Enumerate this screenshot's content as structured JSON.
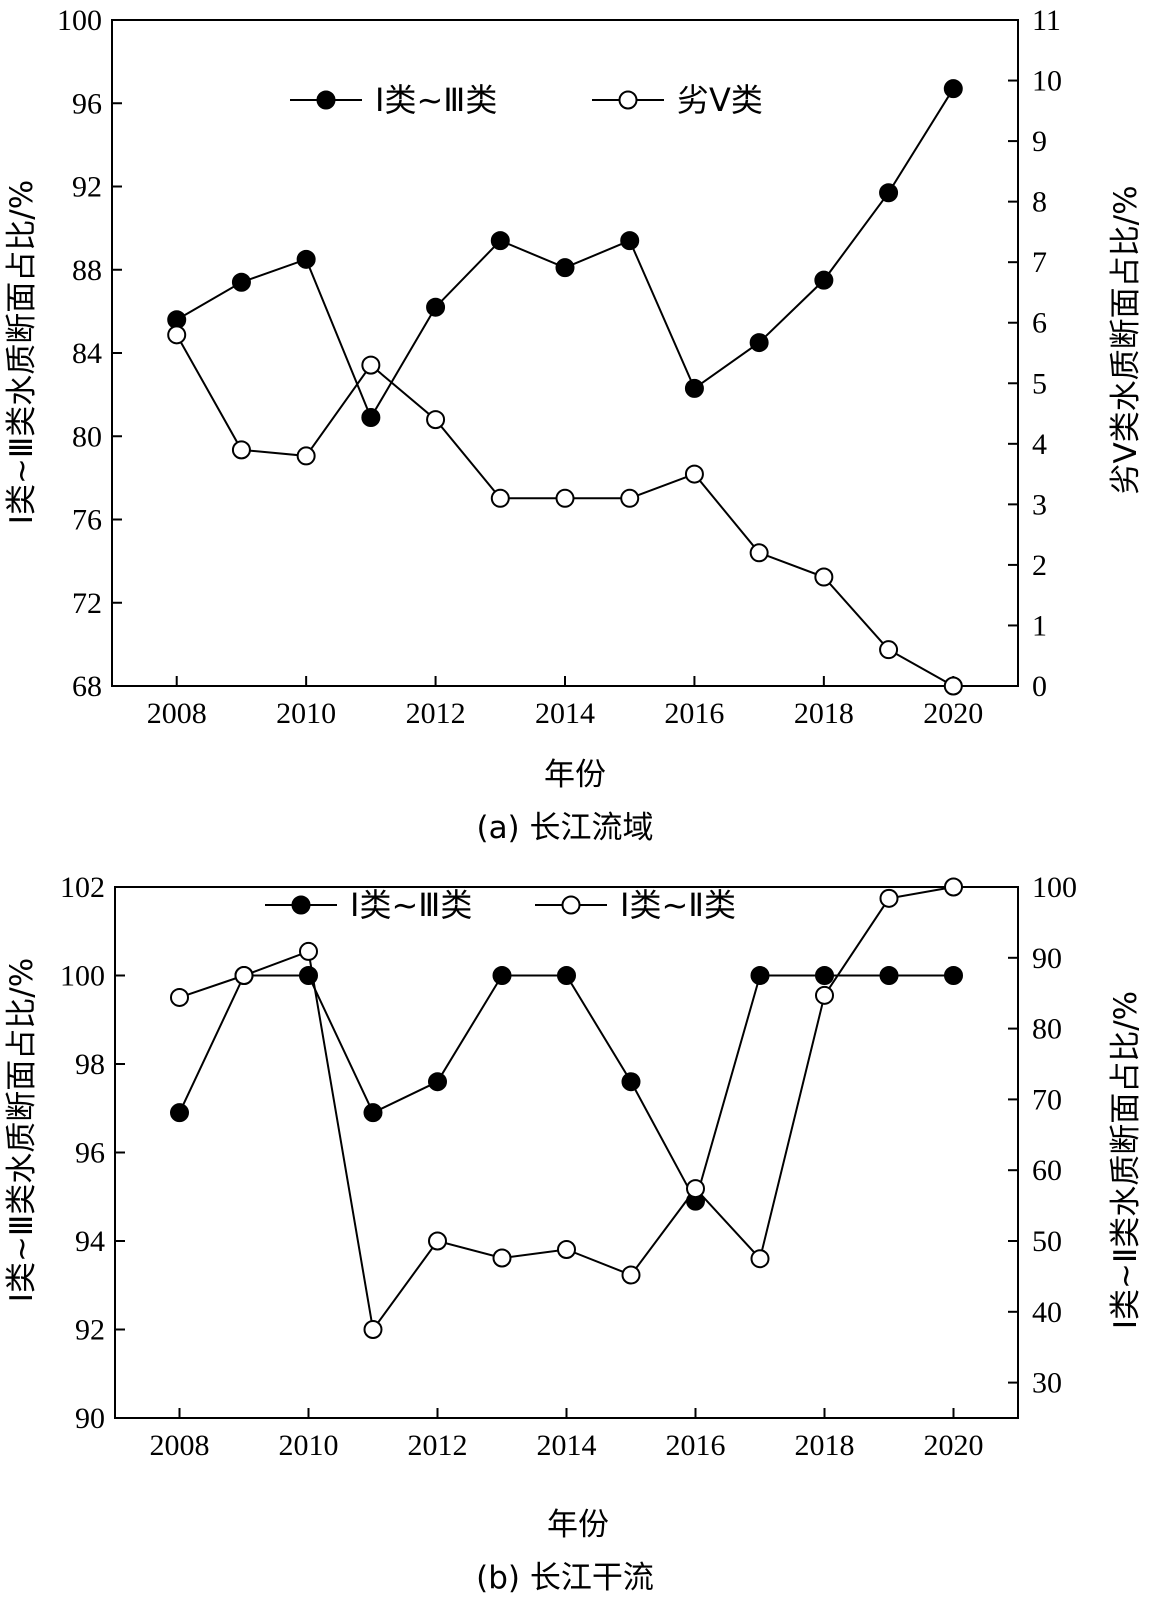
{
  "chart_data": [
    {
      "type": "line",
      "caption": "(a) 长江流域",
      "xlabel": "年份",
      "ylabel_left": "Ⅰ类~Ⅲ类水质断面占比/%",
      "ylabel_right": "劣Ⅴ类水质断面占比/%",
      "x": [
        2008,
        2009,
        2010,
        2011,
        2012,
        2013,
        2014,
        2015,
        2016,
        2017,
        2018,
        2019,
        2020
      ],
      "xticks": [
        2008,
        2010,
        2012,
        2014,
        2016,
        2018,
        2020
      ],
      "xlim": [
        2007,
        2021
      ],
      "ylim_left": [
        68,
        100
      ],
      "yticks_left": [
        68,
        72,
        76,
        80,
        84,
        88,
        92,
        96,
        100
      ],
      "ylim_right": [
        0,
        11
      ],
      "yticks_right": [
        0,
        1,
        2,
        3,
        4,
        5,
        6,
        7,
        8,
        9,
        10,
        11
      ],
      "legend_position": "top",
      "series": [
        {
          "name": "Ⅰ类~Ⅲ类",
          "axis": "left",
          "marker": "filled",
          "values": [
            85.6,
            87.4,
            88.5,
            80.9,
            86.2,
            89.4,
            88.1,
            89.4,
            82.3,
            84.5,
            87.5,
            91.7,
            96.7
          ]
        },
        {
          "name": "劣Ⅴ类",
          "axis": "right",
          "marker": "open",
          "values": [
            5.8,
            3.9,
            3.8,
            5.3,
            4.4,
            3.1,
            3.1,
            3.1,
            3.5,
            2.2,
            1.8,
            0.6,
            0.0
          ]
        }
      ]
    },
    {
      "type": "line",
      "caption": "(b) 长江干流",
      "xlabel": "年份",
      "ylabel_left": "Ⅰ类~Ⅲ类水质断面占比/%",
      "ylabel_right": "Ⅰ类~Ⅱ类水质断面占比/%",
      "x": [
        2008,
        2009,
        2010,
        2011,
        2012,
        2013,
        2014,
        2015,
        2016,
        2017,
        2018,
        2019,
        2020
      ],
      "xticks": [
        2008,
        2010,
        2012,
        2014,
        2016,
        2018,
        2020
      ],
      "xlim": [
        2007,
        2021
      ],
      "ylim_left": [
        90,
        102
      ],
      "yticks_left": [
        90,
        92,
        94,
        96,
        98,
        100,
        102
      ],
      "ylim_right": [
        25,
        100
      ],
      "yticks_right": [
        30,
        40,
        50,
        60,
        70,
        80,
        90,
        100
      ],
      "legend_position": "top",
      "series": [
        {
          "name": "Ⅰ类~Ⅲ类",
          "axis": "left",
          "marker": "filled",
          "values": [
            96.9,
            100,
            100,
            96.9,
            97.6,
            100,
            100,
            97.6,
            94.9,
            100,
            100,
            100,
            100
          ]
        },
        {
          "name": "Ⅰ类~Ⅱ类",
          "axis": "right",
          "marker": "open",
          "values": [
            84.4,
            87.5,
            90.9,
            37.5,
            50.0,
            47.6,
            48.8,
            45.2,
            57.4,
            47.5,
            84.7,
            98.4,
            100
          ]
        }
      ]
    }
  ]
}
